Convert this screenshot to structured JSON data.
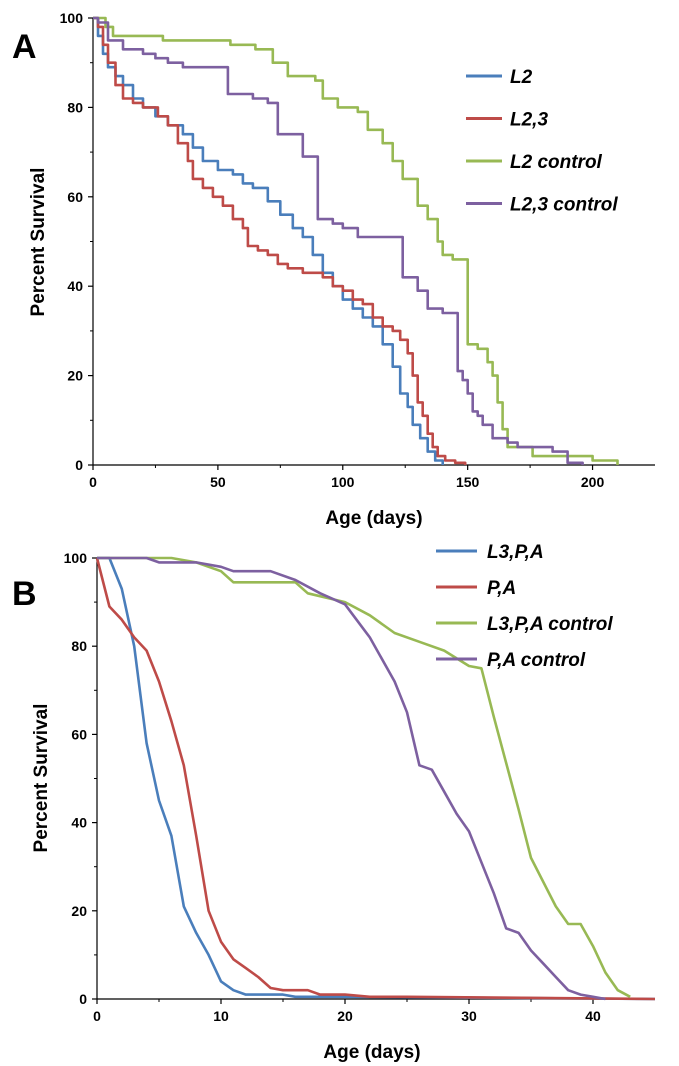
{
  "chart_data": [
    {
      "type": "line",
      "panel_label": "A",
      "title": "",
      "xlabel": "Age (days)",
      "ylabel": "Percent Survival",
      "xlim": [
        0,
        225
      ],
      "ylim": [
        0,
        100
      ],
      "x_ticks": [
        0,
        50,
        100,
        150,
        200
      ],
      "y_ticks": [
        0,
        20,
        40,
        60,
        80,
        100
      ],
      "grid": false,
      "legend": "right",
      "series": [
        {
          "name": "L2",
          "color": "#4a7ebb",
          "step": true,
          "points": [
            [
              0,
              100
            ],
            [
              2,
              96
            ],
            [
              4,
              92
            ],
            [
              6,
              89
            ],
            [
              9,
              87
            ],
            [
              12,
              85
            ],
            [
              16,
              82
            ],
            [
              20,
              80
            ],
            [
              25,
              78
            ],
            [
              30,
              76
            ],
            [
              36,
              74
            ],
            [
              40,
              71
            ],
            [
              44,
              68
            ],
            [
              50,
              66
            ],
            [
              56,
              65
            ],
            [
              60,
              63
            ],
            [
              64,
              62
            ],
            [
              70,
              59
            ],
            [
              75,
              56
            ],
            [
              80,
              53
            ],
            [
              84,
              51
            ],
            [
              88,
              47
            ],
            [
              92,
              43
            ],
            [
              96,
              40
            ],
            [
              100,
              37
            ],
            [
              104,
              35
            ],
            [
              108,
              33
            ],
            [
              112,
              31
            ],
            [
              116,
              27
            ],
            [
              120,
              22
            ],
            [
              123,
              16
            ],
            [
              126,
              13
            ],
            [
              128,
              9
            ],
            [
              131,
              6
            ],
            [
              134,
              3
            ],
            [
              137,
              1
            ],
            [
              140,
              0
            ]
          ]
        },
        {
          "name": "L2,3",
          "color": "#be4b48",
          "step": true,
          "points": [
            [
              0,
              100
            ],
            [
              2,
              98
            ],
            [
              4,
              94
            ],
            [
              6,
              90
            ],
            [
              9,
              85
            ],
            [
              12,
              82
            ],
            [
              16,
              81
            ],
            [
              20,
              80
            ],
            [
              26,
              78
            ],
            [
              30,
              76
            ],
            [
              34,
              72
            ],
            [
              38,
              68
            ],
            [
              40,
              64
            ],
            [
              44,
              62
            ],
            [
              48,
              60
            ],
            [
              52,
              58
            ],
            [
              56,
              55
            ],
            [
              60,
              53
            ],
            [
              62,
              49
            ],
            [
              66,
              48
            ],
            [
              70,
              47
            ],
            [
              74,
              45
            ],
            [
              78,
              44
            ],
            [
              84,
              43
            ],
            [
              88,
              43
            ],
            [
              92,
              42
            ],
            [
              96,
              40
            ],
            [
              100,
              39
            ],
            [
              104,
              37
            ],
            [
              108,
              36
            ],
            [
              112,
              33
            ],
            [
              116,
              31
            ],
            [
              120,
              30
            ],
            [
              123,
              28
            ],
            [
              126,
              25
            ],
            [
              128,
              20
            ],
            [
              130,
              14
            ],
            [
              132,
              11
            ],
            [
              134,
              7
            ],
            [
              136,
              4
            ],
            [
              138,
              2
            ],
            [
              141,
              1
            ],
            [
              145,
              0.5
            ],
            [
              149,
              0
            ]
          ]
        },
        {
          "name": "L2 control",
          "color": "#98b954",
          "step": true,
          "points": [
            [
              0,
              100
            ],
            [
              3,
              100
            ],
            [
              5,
              98
            ],
            [
              8,
              96
            ],
            [
              20,
              96
            ],
            [
              28,
              95
            ],
            [
              40,
              95
            ],
            [
              45,
              95
            ],
            [
              55,
              94
            ],
            [
              65,
              93
            ],
            [
              72,
              90
            ],
            [
              78,
              87
            ],
            [
              86,
              87
            ],
            [
              89,
              86
            ],
            [
              92,
              82
            ],
            [
              98,
              80
            ],
            [
              106,
              79
            ],
            [
              110,
              75
            ],
            [
              116,
              72
            ],
            [
              120,
              68
            ],
            [
              124,
              64
            ],
            [
              130,
              58
            ],
            [
              134,
              55
            ],
            [
              138,
              50
            ],
            [
              140,
              47
            ],
            [
              144,
              46
            ],
            [
              148,
              46
            ],
            [
              150,
              27
            ],
            [
              154,
              26
            ],
            [
              158,
              23
            ],
            [
              160,
              20
            ],
            [
              162,
              14
            ],
            [
              164,
              8
            ],
            [
              166,
              4
            ],
            [
              170,
              4
            ],
            [
              176,
              2
            ],
            [
              180,
              2
            ],
            [
              200,
              1
            ],
            [
              206,
              1
            ],
            [
              210,
              0
            ]
          ]
        },
        {
          "name": "L2,3 control",
          "color": "#7d60a0",
          "step": true,
          "points": [
            [
              0,
              100
            ],
            [
              2,
              99
            ],
            [
              6,
              95
            ],
            [
              12,
              93
            ],
            [
              20,
              92
            ],
            [
              25,
              91
            ],
            [
              30,
              90
            ],
            [
              36,
              89
            ],
            [
              50,
              89
            ],
            [
              54,
              83
            ],
            [
              60,
              83
            ],
            [
              64,
              82
            ],
            [
              70,
              81
            ],
            [
              74,
              74
            ],
            [
              80,
              74
            ],
            [
              84,
              69
            ],
            [
              88,
              69
            ],
            [
              90,
              55
            ],
            [
              96,
              54
            ],
            [
              100,
              53
            ],
            [
              106,
              51
            ],
            [
              120,
              51
            ],
            [
              124,
              42
            ],
            [
              130,
              39
            ],
            [
              134,
              35
            ],
            [
              140,
              34
            ],
            [
              145,
              34
            ],
            [
              146,
              21
            ],
            [
              148,
              19
            ],
            [
              150,
              16
            ],
            [
              152,
              12
            ],
            [
              154,
              11
            ],
            [
              156,
              9
            ],
            [
              160,
              6
            ],
            [
              166,
              5
            ],
            [
              170,
              4
            ],
            [
              176,
              4
            ],
            [
              184,
              3
            ],
            [
              190,
              0.5
            ],
            [
              196,
              0
            ]
          ]
        }
      ]
    },
    {
      "type": "line",
      "panel_label": "B",
      "title": "",
      "xlabel": "Age (days)",
      "ylabel": "Percent Survival",
      "xlim": [
        0,
        45
      ],
      "ylim": [
        0,
        100
      ],
      "x_ticks": [
        0,
        10,
        20,
        30,
        40
      ],
      "y_ticks": [
        0,
        20,
        40,
        60,
        80,
        100
      ],
      "grid": false,
      "legend": "top-right",
      "series": [
        {
          "name": "L3,P,A",
          "color": "#4a7ebb",
          "step": false,
          "points": [
            [
              0,
              100
            ],
            [
              1,
              100
            ],
            [
              2,
              93
            ],
            [
              3,
              80
            ],
            [
              4,
              58
            ],
            [
              5,
              45
            ],
            [
              6,
              37
            ],
            [
              7,
              21
            ],
            [
              8,
              15
            ],
            [
              9,
              10
            ],
            [
              10,
              4
            ],
            [
              11,
              2
            ],
            [
              12,
              1
            ],
            [
              13,
              1
            ],
            [
              14,
              1
            ],
            [
              15,
              1
            ],
            [
              16,
              0.5
            ],
            [
              20,
              0.5
            ],
            [
              45,
              0
            ]
          ]
        },
        {
          "name": "P,A",
          "color": "#be4b48",
          "step": false,
          "points": [
            [
              0,
              100
            ],
            [
              1,
              89
            ],
            [
              2,
              86
            ],
            [
              3,
              82
            ],
            [
              4,
              79
            ],
            [
              5,
              72
            ],
            [
              6,
              63
            ],
            [
              7,
              53
            ],
            [
              8,
              37
            ],
            [
              9,
              20
            ],
            [
              10,
              13
            ],
            [
              11,
              9
            ],
            [
              12,
              7
            ],
            [
              13,
              5
            ],
            [
              14,
              2.5
            ],
            [
              15,
              2
            ],
            [
              17,
              2
            ],
            [
              18,
              1
            ],
            [
              20,
              1
            ],
            [
              22,
              0.5
            ],
            [
              25,
              0.5
            ],
            [
              45,
              0
            ]
          ]
        },
        {
          "name": "L3,P,A control",
          "color": "#98b954",
          "step": false,
          "points": [
            [
              0,
              100
            ],
            [
              4,
              100
            ],
            [
              6,
              100
            ],
            [
              8,
              99
            ],
            [
              10,
              97
            ],
            [
              11,
              94.5
            ],
            [
              16,
              94.5
            ],
            [
              17,
              92
            ],
            [
              20,
              90
            ],
            [
              22,
              87
            ],
            [
              24,
              83
            ],
            [
              26,
              81
            ],
            [
              28,
              79
            ],
            [
              30,
              75.5
            ],
            [
              31,
              75
            ],
            [
              32,
              64
            ],
            [
              34,
              43
            ],
            [
              35,
              32
            ],
            [
              37,
              21
            ],
            [
              38,
              17
            ],
            [
              39,
              17
            ],
            [
              40,
              12
            ],
            [
              41,
              6
            ],
            [
              42,
              2
            ],
            [
              43,
              0.5
            ]
          ]
        },
        {
          "name": "P,A control",
          "color": "#7d60a0",
          "step": false,
          "points": [
            [
              0,
              100
            ],
            [
              4,
              100
            ],
            [
              5,
              99
            ],
            [
              8,
              99
            ],
            [
              10,
              98
            ],
            [
              11,
              97
            ],
            [
              14,
              97
            ],
            [
              16,
              95
            ],
            [
              18,
              92
            ],
            [
              20,
              89.5
            ],
            [
              22,
              82
            ],
            [
              24,
              72
            ],
            [
              25,
              65
            ],
            [
              26,
              53
            ],
            [
              27,
              52
            ],
            [
              28,
              47
            ],
            [
              29,
              42
            ],
            [
              30,
              38
            ],
            [
              31,
              31
            ],
            [
              32,
              24
            ],
            [
              33,
              16
            ],
            [
              34,
              15
            ],
            [
              35,
              11
            ],
            [
              36,
              8
            ],
            [
              37,
              5
            ],
            [
              38,
              2
            ],
            [
              39,
              1
            ],
            [
              40,
              0.5
            ],
            [
              41,
              0
            ]
          ]
        }
      ]
    }
  ]
}
